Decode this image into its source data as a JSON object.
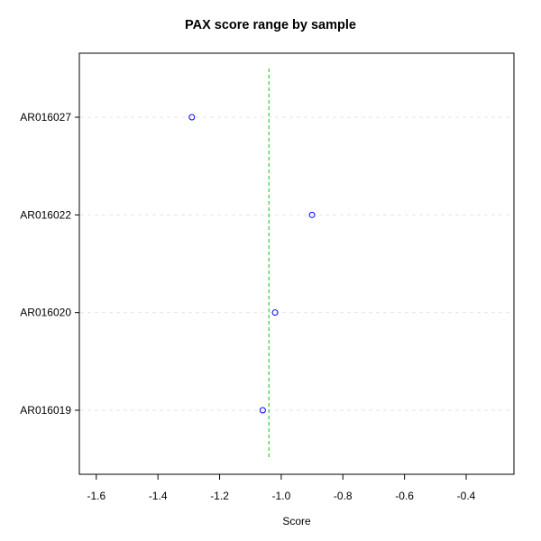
{
  "chart_data": {
    "type": "scatter",
    "title": "PAX score range by sample",
    "xlabel": "Score",
    "ylabel": "",
    "xlim": [
      -1.655,
      -0.245
    ],
    "xticks": [
      -1.6,
      -1.4,
      -1.2,
      -1.0,
      -0.8,
      -0.6,
      -0.4
    ],
    "xtick_labels": [
      "-1.6",
      "-1.4",
      "-1.2",
      "-1.0",
      "-0.8",
      "-0.6",
      "-0.4"
    ],
    "categories": [
      "AR016027",
      "AR016022",
      "AR016020",
      "AR016019"
    ],
    "points": [
      {
        "category": "AR016027",
        "x": -1.29
      },
      {
        "category": "AR016022",
        "x": -0.9
      },
      {
        "category": "AR016020",
        "x": -1.02
      },
      {
        "category": "AR016019",
        "x": -1.06
      }
    ],
    "reference_line": {
      "x": -1.04,
      "style": "dashed",
      "color": "#00cc00"
    },
    "grid": "horizontal dashed",
    "colors": {
      "points": "#0000ff",
      "grid": "#e6e6e6",
      "reference": "#00cc00"
    }
  }
}
